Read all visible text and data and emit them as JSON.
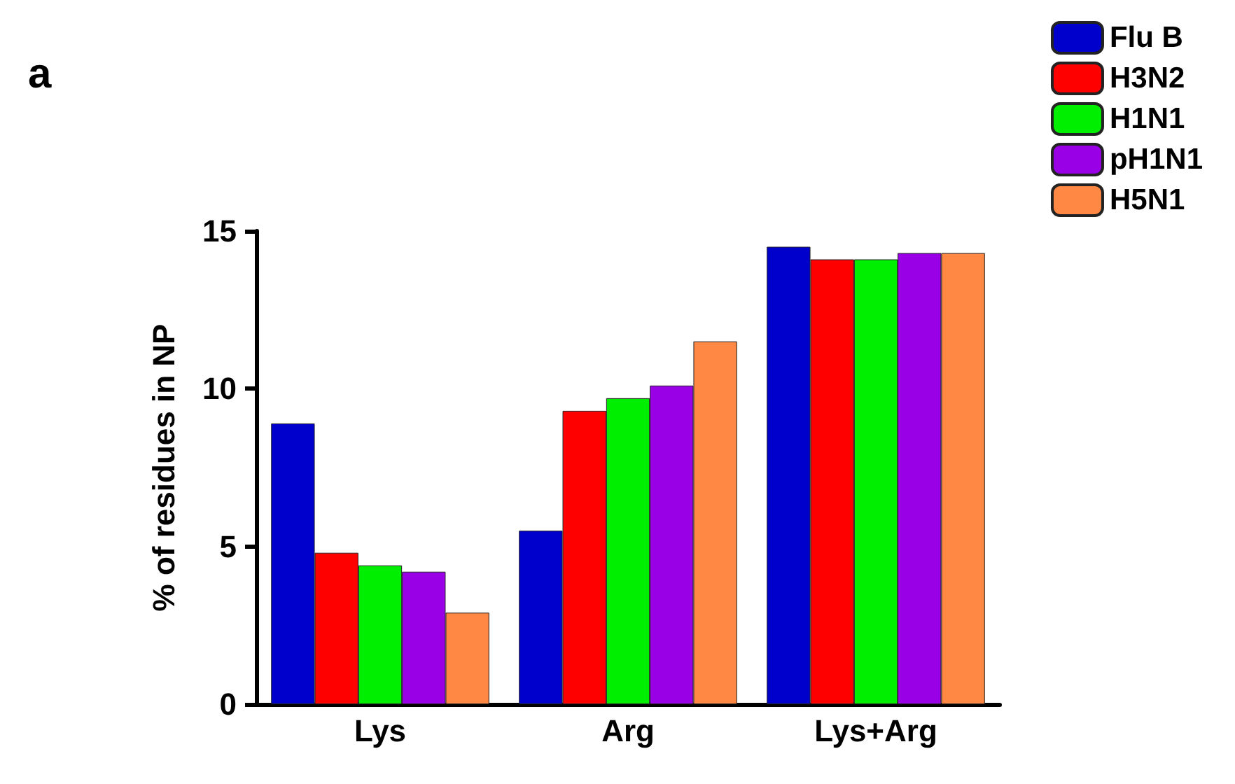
{
  "chart_data": {
    "type": "bar",
    "ylabel": "% of residues in NP",
    "annotations": [
      "a"
    ],
    "categories": [
      "Lys",
      "Arg",
      "Lys+Arg"
    ],
    "series": [
      {
        "name": "Flu B",
        "color": "#0000cc",
        "values": [
          8.9,
          5.5,
          14.5
        ]
      },
      {
        "name": "H3N2",
        "color": "#ff0000",
        "values": [
          4.8,
          9.3,
          14.1
        ]
      },
      {
        "name": "H1N1",
        "color": "#00ee00",
        "values": [
          4.4,
          9.7,
          14.1
        ]
      },
      {
        "name": "pH1N1",
        "color": "#9900e6",
        "values": [
          4.2,
          10.1,
          14.3
        ]
      },
      {
        "name": "H5N1",
        "color": "#ff8844",
        "values": [
          2.9,
          11.5,
          14.3
        ]
      }
    ],
    "ylim": [
      0,
      15
    ],
    "yticks": [
      0,
      5,
      10,
      15
    ],
    "grid": false,
    "legend": "top right"
  }
}
